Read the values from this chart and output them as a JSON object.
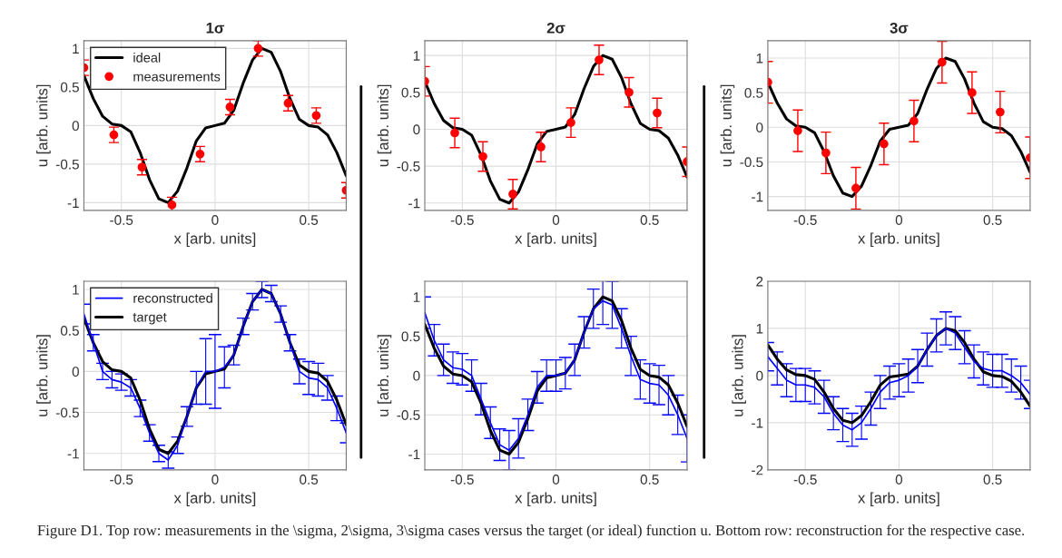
{
  "chart_data": [
    {
      "type": "line",
      "title": "1σ",
      "xlabel": "x [arb. units]",
      "ylabel": "u [arb. units]",
      "xlim": [
        -0.7,
        0.7
      ],
      "ylim": [
        -1.1,
        1.1
      ],
      "xticks": [
        -0.5,
        0,
        0.5
      ],
      "yticks": [
        -1,
        -0.5,
        0,
        0.5,
        1
      ],
      "grid": true,
      "legend": "top left",
      "series": [
        {
          "name": "ideal",
          "color": "#000000",
          "x": [
            -0.7,
            -0.65,
            -0.6,
            -0.55,
            -0.5,
            -0.45,
            -0.4,
            -0.35,
            -0.3,
            -0.25,
            -0.2,
            -0.15,
            -0.1,
            -0.05,
            0,
            0.05,
            0.1,
            0.15,
            0.2,
            0.25,
            0.3,
            0.35,
            0.4,
            0.45,
            0.5,
            0.55,
            0.6,
            0.65,
            0.7
          ],
          "values": [
            0.65,
            0.35,
            0.12,
            0.02,
            0.0,
            -0.08,
            -0.35,
            -0.7,
            -0.95,
            -1.0,
            -0.85,
            -0.55,
            -0.2,
            -0.03,
            0,
            0.03,
            0.2,
            0.55,
            0.85,
            1.0,
            0.95,
            0.7,
            0.35,
            0.08,
            0.0,
            -0.02,
            -0.12,
            -0.35,
            -0.65
          ]
        },
        {
          "name": "measurements",
          "type": "scatter",
          "color": "#ff0000",
          "marker": "circle",
          "x": [
            -0.7,
            -0.54,
            -0.39,
            -0.23,
            -0.08,
            0.08,
            0.23,
            0.39,
            0.54,
            0.7
          ],
          "values": [
            0.75,
            -0.12,
            -0.54,
            -1.03,
            -0.37,
            0.24,
            1.0,
            0.29,
            0.13,
            -0.84
          ],
          "errors": [
            0.1,
            0.1,
            0.1,
            0.1,
            0.1,
            0.1,
            0.1,
            0.1,
            0.1,
            0.1
          ]
        }
      ]
    },
    {
      "type": "line",
      "title": "2σ",
      "xlabel": "x [arb. units]",
      "ylabel": "u [arb. units]",
      "xlim": [
        -0.7,
        0.7
      ],
      "ylim": [
        -1.1,
        1.2
      ],
      "xticks": [
        -0.5,
        0,
        0.5
      ],
      "yticks": [
        -1,
        -0.5,
        0,
        0.5,
        1
      ],
      "grid": true,
      "series": [
        {
          "type": "line",
          "color": "#000000",
          "x": [
            -0.7,
            -0.65,
            -0.6,
            -0.55,
            -0.5,
            -0.45,
            -0.4,
            -0.35,
            -0.3,
            -0.25,
            -0.2,
            -0.15,
            -0.1,
            -0.05,
            0,
            0.05,
            0.1,
            0.15,
            0.2,
            0.25,
            0.3,
            0.35,
            0.4,
            0.45,
            0.5,
            0.55,
            0.6,
            0.65,
            0.7
          ],
          "values": [
            0.65,
            0.35,
            0.12,
            0.02,
            0.0,
            -0.08,
            -0.35,
            -0.7,
            -0.95,
            -1.0,
            -0.85,
            -0.55,
            -0.2,
            -0.03,
            0,
            0.03,
            0.2,
            0.55,
            0.85,
            1.0,
            0.95,
            0.7,
            0.35,
            0.08,
            0.0,
            -0.02,
            -0.12,
            -0.35,
            -0.65
          ]
        },
        {
          "type": "scatter",
          "color": "#ff0000",
          "marker": "circle",
          "x": [
            -0.7,
            -0.54,
            -0.39,
            -0.23,
            -0.08,
            0.08,
            0.23,
            0.39,
            0.54,
            0.7
          ],
          "values": [
            0.65,
            -0.05,
            -0.37,
            -0.88,
            -0.24,
            0.09,
            0.94,
            0.5,
            0.22,
            -0.44
          ],
          "errors": [
            0.2,
            0.2,
            0.2,
            0.2,
            0.2,
            0.2,
            0.2,
            0.2,
            0.2,
            0.2
          ]
        }
      ]
    },
    {
      "type": "line",
      "title": "3σ",
      "xlabel": "x [arb. units]",
      "ylabel": "u [arb. units]",
      "xlim": [
        -0.7,
        0.7
      ],
      "ylim": [
        -1.2,
        1.25
      ],
      "xticks": [
        -0.5,
        0,
        0.5
      ],
      "yticks": [
        -1,
        -0.5,
        0,
        0.5,
        1
      ],
      "grid": true,
      "series": [
        {
          "type": "line",
          "color": "#000000",
          "x": [
            -0.7,
            -0.65,
            -0.6,
            -0.55,
            -0.5,
            -0.45,
            -0.4,
            -0.35,
            -0.3,
            -0.25,
            -0.2,
            -0.15,
            -0.1,
            -0.05,
            0,
            0.05,
            0.1,
            0.15,
            0.2,
            0.25,
            0.3,
            0.35,
            0.4,
            0.45,
            0.5,
            0.55,
            0.6,
            0.65,
            0.7
          ],
          "values": [
            0.65,
            0.35,
            0.12,
            0.02,
            0.0,
            -0.08,
            -0.35,
            -0.7,
            -0.95,
            -1.0,
            -0.85,
            -0.55,
            -0.2,
            -0.03,
            0,
            0.03,
            0.2,
            0.55,
            0.85,
            1.0,
            0.95,
            0.7,
            0.35,
            0.08,
            0.0,
            -0.02,
            -0.12,
            -0.35,
            -0.65
          ]
        },
        {
          "type": "scatter",
          "color": "#ff0000",
          "marker": "circle",
          "x": [
            -0.7,
            -0.54,
            -0.39,
            -0.23,
            -0.08,
            0.08,
            0.23,
            0.39,
            0.54,
            0.7
          ],
          "values": [
            0.65,
            -0.05,
            -0.37,
            -0.88,
            -0.24,
            0.09,
            0.94,
            0.5,
            0.22,
            -0.44
          ],
          "errors": [
            0.3,
            0.3,
            0.3,
            0.3,
            0.3,
            0.3,
            0.3,
            0.3,
            0.3,
            0.3
          ]
        }
      ]
    },
    {
      "type": "line",
      "xlabel": "x [arb. units]",
      "ylabel": "u [arb. units]",
      "xlim": [
        -0.7,
        0.7
      ],
      "ylim": [
        -1.2,
        1.1
      ],
      "xticks": [
        -0.5,
        0,
        0.5
      ],
      "yticks": [
        -1,
        -0.5,
        0,
        0.5,
        1
      ],
      "grid": true,
      "legend": "top left",
      "series": [
        {
          "name": "reconstructed",
          "color": "#0000ff",
          "x": [
            -0.7,
            -0.65,
            -0.6,
            -0.55,
            -0.5,
            -0.45,
            -0.4,
            -0.35,
            -0.3,
            -0.25,
            -0.2,
            -0.15,
            -0.1,
            -0.05,
            0,
            0.05,
            0.1,
            0.15,
            0.2,
            0.25,
            0.3,
            0.35,
            0.4,
            0.45,
            0.5,
            0.55,
            0.6,
            0.65,
            0.7
          ],
          "values": [
            0.7,
            0.35,
            0.0,
            -0.1,
            -0.13,
            -0.2,
            -0.45,
            -0.75,
            -1.0,
            -1.08,
            -0.9,
            -0.55,
            -0.2,
            0.0,
            0.0,
            0.05,
            0.2,
            0.55,
            0.85,
            1.0,
            0.95,
            0.7,
            0.35,
            0.0,
            -0.08,
            -0.1,
            -0.2,
            -0.45,
            -0.75
          ],
          "errors": [
            0.12,
            0.1,
            0.1,
            0.1,
            0.1,
            0.1,
            0.1,
            0.1,
            0.1,
            0.1,
            0.1,
            0.12,
            0.2,
            0.4,
            0.45,
            0.25,
            0.12,
            0.1,
            0.1,
            0.1,
            0.1,
            0.1,
            0.1,
            0.15,
            0.2,
            0.2,
            0.15,
            0.15,
            0.12
          ]
        },
        {
          "name": "target",
          "color": "#000000",
          "x": [
            -0.7,
            -0.65,
            -0.6,
            -0.55,
            -0.5,
            -0.45,
            -0.4,
            -0.35,
            -0.3,
            -0.25,
            -0.2,
            -0.15,
            -0.1,
            -0.05,
            0,
            0.05,
            0.1,
            0.15,
            0.2,
            0.25,
            0.3,
            0.35,
            0.4,
            0.45,
            0.5,
            0.55,
            0.6,
            0.65,
            0.7
          ],
          "values": [
            0.65,
            0.35,
            0.12,
            0.02,
            0.0,
            -0.08,
            -0.35,
            -0.7,
            -0.95,
            -1.0,
            -0.85,
            -0.55,
            -0.2,
            -0.03,
            0,
            0.03,
            0.2,
            0.55,
            0.85,
            1.0,
            0.95,
            0.7,
            0.35,
            0.08,
            0.0,
            -0.02,
            -0.12,
            -0.35,
            -0.65
          ]
        }
      ]
    },
    {
      "type": "line",
      "xlabel": "x [arb. units]",
      "ylabel": "u [arb. units]",
      "xlim": [
        -0.7,
        0.7
      ],
      "ylim": [
        -1.2,
        1.2
      ],
      "xticks": [
        -0.5,
        0,
        0.5
      ],
      "yticks": [
        -1,
        -0.5,
        0,
        0.5,
        1
      ],
      "grid": true,
      "series": [
        {
          "type": "line",
          "color": "#0000ff",
          "x": [
            -0.7,
            -0.65,
            -0.6,
            -0.55,
            -0.5,
            -0.45,
            -0.4,
            -0.35,
            -0.3,
            -0.25,
            -0.2,
            -0.15,
            -0.1,
            -0.05,
            0,
            0.05,
            0.1,
            0.15,
            0.2,
            0.25,
            0.3,
            0.35,
            0.4,
            0.45,
            0.5,
            0.55,
            0.6,
            0.65,
            0.7
          ],
          "values": [
            0.8,
            0.45,
            0.2,
            0.1,
            0.08,
            0.0,
            -0.3,
            -0.6,
            -0.88,
            -0.95,
            -0.8,
            -0.5,
            -0.15,
            0.0,
            0.0,
            0.03,
            0.2,
            0.55,
            0.85,
            0.95,
            0.9,
            0.6,
            0.25,
            -0.05,
            -0.1,
            -0.12,
            -0.25,
            -0.5,
            -0.8
          ],
          "errors": [
            0.2,
            0.2,
            0.2,
            0.2,
            0.2,
            0.2,
            0.2,
            0.2,
            0.2,
            0.25,
            0.25,
            0.2,
            0.2,
            0.2,
            0.2,
            0.2,
            0.2,
            0.2,
            0.25,
            0.3,
            0.3,
            0.25,
            0.25,
            0.25,
            0.25,
            0.25,
            0.25,
            0.25,
            0.3
          ]
        },
        {
          "type": "line",
          "color": "#000000",
          "x": [
            -0.7,
            -0.65,
            -0.6,
            -0.55,
            -0.5,
            -0.45,
            -0.4,
            -0.35,
            -0.3,
            -0.25,
            -0.2,
            -0.15,
            -0.1,
            -0.05,
            0,
            0.05,
            0.1,
            0.15,
            0.2,
            0.25,
            0.3,
            0.35,
            0.4,
            0.45,
            0.5,
            0.55,
            0.6,
            0.65,
            0.7
          ],
          "values": [
            0.65,
            0.35,
            0.12,
            0.02,
            0.0,
            -0.08,
            -0.35,
            -0.7,
            -0.95,
            -1.0,
            -0.85,
            -0.55,
            -0.2,
            -0.03,
            0,
            0.03,
            0.2,
            0.55,
            0.85,
            1.0,
            0.95,
            0.7,
            0.35,
            0.08,
            0.0,
            -0.02,
            -0.12,
            -0.35,
            -0.65
          ]
        }
      ]
    },
    {
      "type": "line",
      "xlabel": "x [arb. units]",
      "ylabel": "u [arb. units]",
      "xlim": [
        -0.7,
        0.7
      ],
      "ylim": [
        -2,
        2
      ],
      "xticks": [
        -0.5,
        0,
        0.5
      ],
      "yticks": [
        -2,
        -1,
        0,
        1,
        2
      ],
      "grid": true,
      "annotations": [
        "Figure D1. Top row: measurements in the \\sigma, 2\\sigma, 3\\sigma cases versus the target (or ideal) function u. Bottom row: reconstruction for the respective case."
      ],
      "series": [
        {
          "type": "line",
          "color": "#0000ff",
          "x": [
            -0.7,
            -0.65,
            -0.6,
            -0.55,
            -0.5,
            -0.45,
            -0.4,
            -0.35,
            -0.3,
            -0.25,
            -0.2,
            -0.15,
            -0.1,
            -0.05,
            0,
            0.05,
            0.1,
            0.15,
            0.2,
            0.25,
            0.3,
            0.35,
            0.4,
            0.45,
            0.5,
            0.55,
            0.6,
            0.65,
            0.7
          ],
          "values": [
            0.4,
            0.15,
            -0.1,
            -0.2,
            -0.2,
            -0.25,
            -0.45,
            -0.8,
            -1.05,
            -1.15,
            -1.0,
            -0.7,
            -0.35,
            -0.15,
            -0.1,
            0.0,
            0.2,
            0.55,
            0.85,
            1.0,
            0.9,
            0.6,
            0.3,
            0.15,
            0.1,
            0.1,
            0.0,
            -0.15,
            -0.4
          ],
          "errors": [
            0.3,
            0.35,
            0.35,
            0.35,
            0.35,
            0.35,
            0.35,
            0.35,
            0.35,
            0.35,
            0.35,
            0.35,
            0.35,
            0.35,
            0.35,
            0.35,
            0.35,
            0.35,
            0.35,
            0.35,
            0.35,
            0.35,
            0.35,
            0.35,
            0.35,
            0.35,
            0.35,
            0.35,
            0.3
          ]
        },
        {
          "type": "line",
          "color": "#000000",
          "x": [
            -0.7,
            -0.65,
            -0.6,
            -0.55,
            -0.5,
            -0.45,
            -0.4,
            -0.35,
            -0.3,
            -0.25,
            -0.2,
            -0.15,
            -0.1,
            -0.05,
            0,
            0.05,
            0.1,
            0.15,
            0.2,
            0.25,
            0.3,
            0.35,
            0.4,
            0.45,
            0.5,
            0.55,
            0.6,
            0.65,
            0.7
          ],
          "values": [
            0.65,
            0.35,
            0.12,
            0.02,
            0.0,
            -0.08,
            -0.35,
            -0.7,
            -0.95,
            -1.0,
            -0.85,
            -0.55,
            -0.2,
            -0.03,
            0,
            0.03,
            0.2,
            0.55,
            0.85,
            1.0,
            0.95,
            0.7,
            0.35,
            0.08,
            0.0,
            -0.02,
            -0.12,
            -0.35,
            -0.65
          ]
        }
      ]
    }
  ]
}
